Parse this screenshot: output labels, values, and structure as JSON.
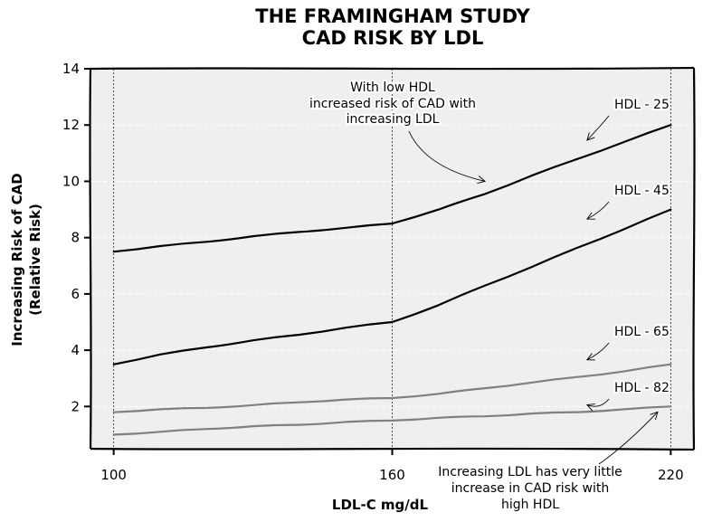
{
  "chart_data": {
    "type": "line",
    "title": [
      "THE FRAMINGHAM STUDY",
      "CAD RISK BY LDL"
    ],
    "xlabel": "LDL-C mg/dL",
    "ylabel": [
      "Increasing Risk of CAD",
      "(Relative Risk)"
    ],
    "xlim": [
      95,
      225
    ],
    "ylim": [
      0.5,
      14
    ],
    "xticks": [
      100,
      160,
      220
    ],
    "yticks": [
      2,
      4,
      6,
      8,
      10,
      12,
      14
    ],
    "grid": true,
    "series": [
      {
        "name": "HDL - 25",
        "color": "#000000",
        "x": [
          100,
          110,
          120,
          130,
          140,
          150,
          160,
          170,
          180,
          190,
          200,
          210,
          220
        ],
        "y": [
          7.5,
          7.7,
          7.85,
          8.05,
          8.2,
          8.35,
          8.5,
          9.0,
          9.55,
          10.2,
          10.8,
          11.4,
          12.0
        ]
      },
      {
        "name": "HDL - 45",
        "color": "#000000",
        "x": [
          100,
          110,
          120,
          130,
          140,
          150,
          160,
          170,
          180,
          190,
          200,
          210,
          220
        ],
        "y": [
          3.5,
          3.85,
          4.1,
          4.35,
          4.55,
          4.8,
          5.0,
          5.6,
          6.3,
          6.95,
          7.65,
          8.3,
          9.0
        ]
      },
      {
        "name": "HDL - 65",
        "color": "#808080",
        "x": [
          100,
          110,
          120,
          130,
          140,
          150,
          160,
          170,
          180,
          190,
          200,
          210,
          220
        ],
        "y": [
          1.8,
          1.9,
          1.95,
          2.05,
          2.15,
          2.25,
          2.3,
          2.45,
          2.65,
          2.85,
          3.05,
          3.25,
          3.5
        ]
      },
      {
        "name": "HDL - 82",
        "color": "#808080",
        "x": [
          100,
          110,
          120,
          130,
          140,
          150,
          160,
          170,
          180,
          190,
          200,
          210,
          220
        ],
        "y": [
          1.0,
          1.1,
          1.2,
          1.3,
          1.35,
          1.45,
          1.5,
          1.6,
          1.65,
          1.75,
          1.8,
          1.9,
          2.0
        ]
      }
    ],
    "annotations": [
      {
        "lines": [
          "With low HDL",
          "increased risk of CAD with",
          "increasing LDL"
        ],
        "arrow_to": [
          180,
          10.0
        ]
      },
      {
        "lines": [
          "Increasing LDL has very little",
          "increase in CAD risk with",
          "high HDL"
        ],
        "arrow_to": [
          217,
          2.0
        ]
      }
    ],
    "series_label_arrows": [
      [
        201,
        11.3
      ],
      [
        201,
        8.5
      ],
      [
        201,
        3.5
      ],
      [
        201,
        1.9
      ]
    ]
  },
  "colors": {
    "plot_background": "#efefef",
    "grid": "#ffffff",
    "axis": "#000000"
  }
}
